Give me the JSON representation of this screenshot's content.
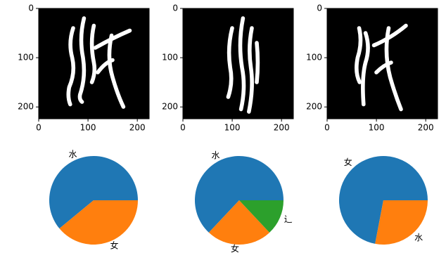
{
  "chart_data": [
    {
      "type": "image",
      "xlim": [
        0,
        224
      ],
      "ylim": [
        224,
        0
      ],
      "xticks": [
        0,
        100,
        200
      ],
      "yticks": [
        0,
        100,
        200
      ]
    },
    {
      "type": "image",
      "xlim": [
        0,
        224
      ],
      "ylim": [
        224,
        0
      ],
      "xticks": [
        0,
        100,
        200
      ],
      "yticks": [
        0,
        100,
        200
      ]
    },
    {
      "type": "image",
      "xlim": [
        0,
        224
      ],
      "ylim": [
        224,
        0
      ],
      "xticks": [
        0,
        100,
        200
      ],
      "yticks": [
        0,
        100,
        200
      ]
    },
    {
      "type": "pie",
      "categories": [
        "水",
        "女"
      ],
      "values": [
        61,
        39
      ],
      "colors": [
        "#1f77b4",
        "#ff7f0e"
      ]
    },
    {
      "type": "pie",
      "categories": [
        "水",
        "女",
        "辶"
      ],
      "values": [
        63,
        24,
        13
      ],
      "colors": [
        "#1f77b4",
        "#ff7f0e",
        "#2ca02c"
      ]
    },
    {
      "type": "pie",
      "categories": [
        "女",
        "水"
      ],
      "values": [
        72,
        28
      ],
      "colors": [
        "#1f77b4",
        "#ff7f0e"
      ]
    }
  ]
}
